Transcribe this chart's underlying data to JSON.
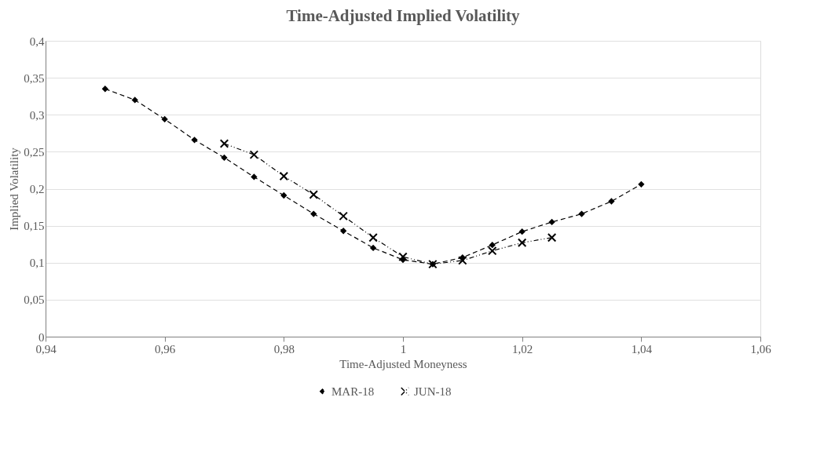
{
  "chart_data": {
    "type": "line",
    "title": "Time-Adjusted Implied Volatility",
    "xlabel": "Time-Adjusted Moneyness",
    "ylabel": "Implied Volatility",
    "series": [
      {
        "name": "MAR-18",
        "color": "#000000",
        "marker": "diamond",
        "line_style": "dashed",
        "x": [
          0.95,
          0.955,
          0.96,
          0.965,
          0.97,
          0.975,
          0.98,
          0.985,
          0.99,
          0.995,
          1.0,
          1.005,
          1.01,
          1.015,
          1.02,
          1.025,
          1.03,
          1.035,
          1.04
        ],
        "values": [
          0.335,
          0.32,
          0.294,
          0.266,
          0.242,
          0.216,
          0.191,
          0.166,
          0.143,
          0.12,
          0.104,
          0.098,
          0.107,
          0.124,
          0.142,
          0.155,
          0.166,
          0.183,
          0.206
        ]
      },
      {
        "name": "JUN-18",
        "color": "#000000",
        "marker": "cross",
        "line_style": "dashdot",
        "x": [
          0.97,
          0.975,
          0.98,
          0.985,
          0.99,
          0.995,
          1.0,
          1.005,
          1.01,
          1.015,
          1.02,
          1.025
        ],
        "values": [
          0.261,
          0.246,
          0.217,
          0.192,
          0.163,
          0.134,
          0.108,
          0.098,
          0.103,
          0.116,
          0.127,
          0.134
        ]
      }
    ],
    "xlim": [
      0.94,
      1.06
    ],
    "xticks": [
      {
        "value": 0.94,
        "label": "0,94"
      },
      {
        "value": 0.96,
        "label": "0,96"
      },
      {
        "value": 0.98,
        "label": "0,98"
      },
      1,
      {
        "value": 1.02,
        "label": "1,02"
      },
      {
        "value": 1.04,
        "label": "1,04"
      },
      {
        "value": 1.06,
        "label": "1,06"
      }
    ],
    "ylim": [
      0,
      0.4
    ],
    "yticks": [
      0,
      {
        "value": 0.05,
        "label": "0,05"
      },
      {
        "value": 0.1,
        "label": "0,1"
      },
      {
        "value": 0.15,
        "label": "0,15"
      },
      {
        "value": 0.2,
        "label": "0,2"
      },
      {
        "value": 0.25,
        "label": "0,25"
      },
      {
        "value": 0.3,
        "label": "0,3"
      },
      {
        "value": 0.35,
        "label": "0,35"
      },
      {
        "value": 0.4,
        "label": "0,4"
      }
    ],
    "grid": "y",
    "legend": "bottom"
  }
}
